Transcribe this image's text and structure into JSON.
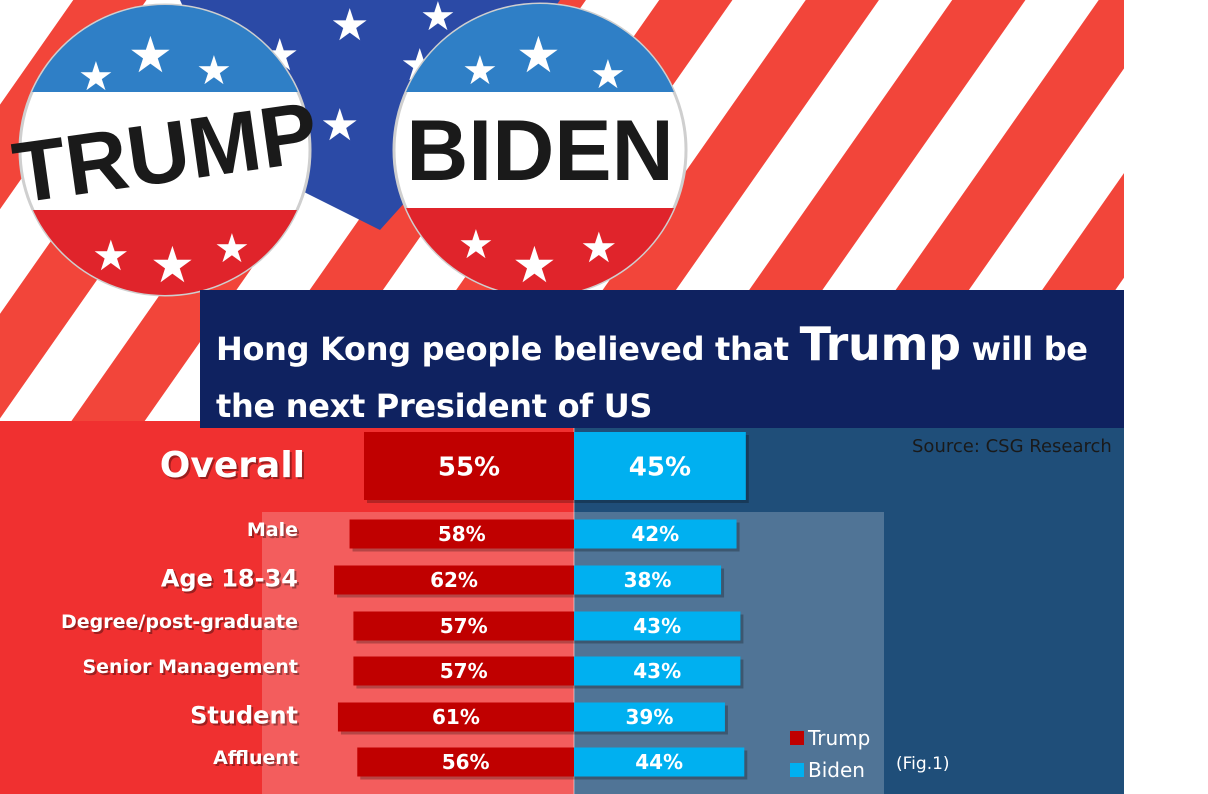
{
  "headline": {
    "part1": "Hong Kong people believed that ",
    "emph": "Trump",
    "part2": " will be the next President of US"
  },
  "source": "Source:  CSG Research",
  "figure_label": "(Fig.1)",
  "button_labels": {
    "left": "TRUMP",
    "right": "BIDEN"
  },
  "colors": {
    "trump": "#c00000",
    "biden": "#00b0f0",
    "headline_bg": "#0f2260",
    "left_bg": "#f03030",
    "right_bg": "#1f4e79"
  },
  "chart_data": {
    "type": "bar",
    "orientation": "horizontal-diverging",
    "categories": [
      "Overall",
      "Male",
      "Age 18-34",
      "Degree/post-graduate",
      "Senior Management",
      "Student",
      "Affluent"
    ],
    "series": [
      {
        "name": "Trump",
        "values": [
          55,
          58,
          62,
          57,
          57,
          61,
          56
        ]
      },
      {
        "name": "Biden",
        "values": [
          45,
          42,
          38,
          43,
          43,
          39,
          44
        ]
      }
    ],
    "data_labels": {
      "Trump": [
        "55%",
        "58%",
        "62%",
        "57%",
        "57%",
        "61%",
        "56%"
      ],
      "Biden": [
        "45%",
        "42%",
        "38%",
        "43%",
        "43%",
        "39%",
        "44%"
      ]
    },
    "legend": {
      "position": "bottom-right",
      "entries": [
        "Trump",
        "Biden"
      ]
    },
    "grid": false
  }
}
